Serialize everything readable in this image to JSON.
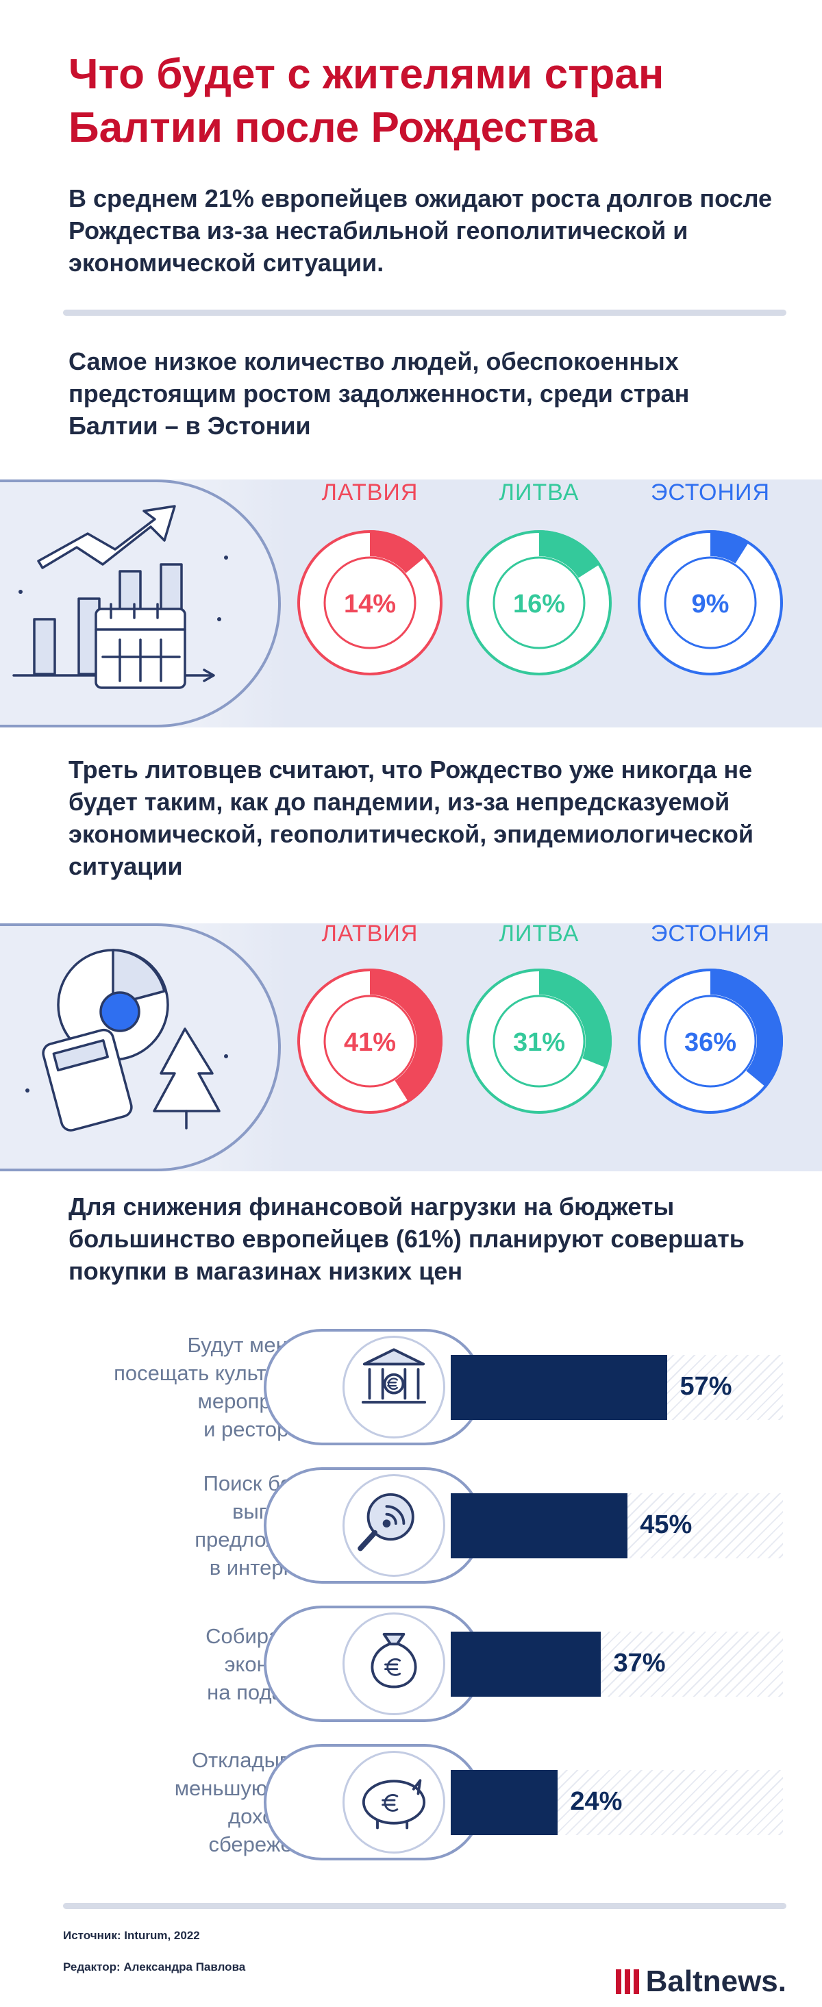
{
  "title": "Что будет с жителями стран Балтии после Рождества",
  "intro": "В среднем 21% европейцев ожидают роста долгов после Рождества из-за нестабильной геополитической и экономической ситуации.",
  "section1": {
    "heading": "Самое низкое количество людей, обеспокоенных предстоящим ростом задолженности, среди стран Балтии – в Эстонии"
  },
  "section2": {
    "heading": "Треть литовцев считают, что Рождество уже никогда не будет таким, как до пандемии, из-за непредсказуемой экономической, геополитической, эпидемиологической ситуации"
  },
  "section3": {
    "heading": "Для снижения финансовой нагрузки на бюджеты большинство европейцев (61%) планируют совершать покупки в магазинах низких цен"
  },
  "colors": {
    "latvia": "#f0485a",
    "lithuania": "#34c99b",
    "estonia": "#2f6ff0",
    "bar": "#0e2a5c",
    "title": "#c8102e"
  },
  "chart_data": [
    {
      "type": "pie",
      "categories": [
        "ЛАТВИЯ",
        "ЛИТВА",
        "ЭСТОНИЯ"
      ],
      "values": [
        14,
        16,
        9
      ],
      "labels": [
        "14%",
        "16%",
        "9%"
      ],
      "unit": "%"
    },
    {
      "type": "pie",
      "categories": [
        "ЛАТВИЯ",
        "ЛИТВА",
        "ЭСТОНИЯ"
      ],
      "values": [
        41,
        31,
        36
      ],
      "labels": [
        "41%",
        "31%",
        "36%"
      ],
      "unit": "%"
    },
    {
      "type": "bar",
      "categories": [
        "Будут меньше посещать культурные мероприятия и рестораны",
        "Поиск более выгодных предложений в интернете",
        "Собираются экономить на подарках",
        "Откладывают меньшую часть дохода на сбережения"
      ],
      "label_lines": [
        [
          "Будут меньше",
          "посещать культурные",
          "мероприятия",
          "и рестораны"
        ],
        [
          "Поиск более",
          "выгодных",
          "предложений",
          "в интернете"
        ],
        [
          "Собираются",
          "экономить",
          "на подарках"
        ],
        [
          "Откладывают",
          "меньшую часть",
          "дохода на",
          "сбережения"
        ]
      ],
      "values": [
        57,
        45,
        37,
        24
      ],
      "labels": [
        "57%",
        "45%",
        "37%",
        "24%"
      ],
      "icons": [
        "museum-icon",
        "search-icon",
        "money-bag-icon",
        "piggy-bank-icon"
      ],
      "ylim": [
        0,
        100
      ]
    }
  ],
  "footer": {
    "source": "Источник: Inturum, 2022",
    "editor": "Редактор: Александра Павлова",
    "logo": "Baltnews."
  }
}
